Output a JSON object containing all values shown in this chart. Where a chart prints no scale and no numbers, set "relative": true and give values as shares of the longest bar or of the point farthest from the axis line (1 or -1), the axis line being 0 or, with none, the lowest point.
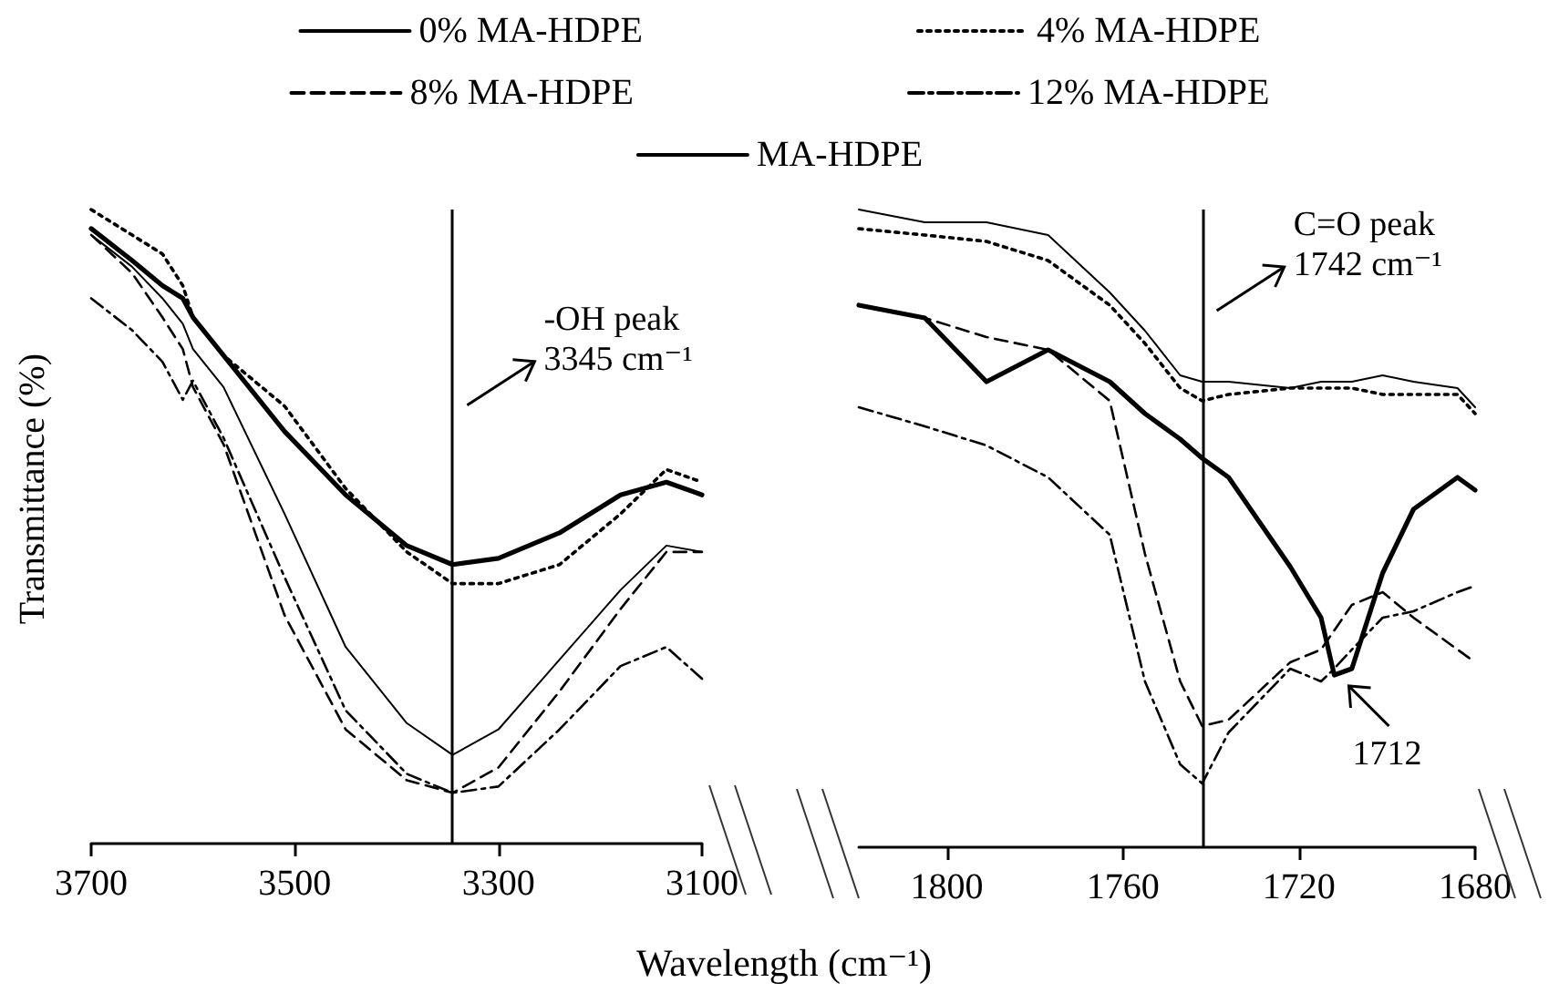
{
  "chart_data": [
    {
      "type": "line",
      "relative": true,
      "ylabel": "Transmittance (%)",
      "xlabel": "Wavelength (cm⁻¹)",
      "legend": "top",
      "marker": "none",
      "tick_labels": "x",
      "x": [
        3700,
        3660,
        3630,
        3610,
        3600,
        3570,
        3510,
        3450,
        3390,
        3345,
        3300,
        3240,
        3180,
        3135,
        3100
      ],
      "xlim": [
        3700,
        3100
      ],
      "xticks": [
        3700,
        3500,
        3300,
        3100
      ],
      "series": [
        {
          "name": "0% MA-HDPE",
          "color": "#000000",
          "line_style": "solid",
          "values": [
            0.96,
            0.91,
            0.86,
            0.82,
            0.78,
            0.72,
            0.52,
            0.31,
            0.19,
            0.14,
            0.18,
            0.29,
            0.4,
            0.47,
            0.46
          ]
        },
        {
          "name": "4% MA-HDPE",
          "color": "#000000",
          "line_style": "dotted",
          "values": [
            1.0,
            0.96,
            0.93,
            0.88,
            0.83,
            0.77,
            0.69,
            0.56,
            0.46,
            0.41,
            0.41,
            0.44,
            0.52,
            0.59,
            0.57
          ]
        },
        {
          "name": "8% MA-HDPE",
          "color": "#000000",
          "line_style": "dashed",
          "values": [
            0.96,
            0.9,
            0.83,
            0.78,
            0.72,
            0.63,
            0.36,
            0.18,
            0.1,
            0.08,
            0.12,
            0.24,
            0.37,
            0.46,
            0.46
          ]
        },
        {
          "name": "12% MA-HDPE",
          "color": "#000000",
          "line_style": "dashdot",
          "values": [
            0.86,
            0.81,
            0.76,
            0.7,
            0.73,
            0.64,
            0.42,
            0.21,
            0.11,
            0.08,
            0.09,
            0.18,
            0.28,
            0.31,
            0.26
          ]
        },
        {
          "name": "MA-HDPE",
          "color": "#000000",
          "line_style": "solid",
          "values": [
            0.97,
            0.92,
            0.88,
            0.86,
            0.83,
            0.77,
            0.65,
            0.55,
            0.47,
            0.44,
            0.45,
            0.49,
            0.55,
            0.57,
            0.55
          ]
        }
      ],
      "ref_lines": [
        {
          "axis": "x",
          "value": 3345
        }
      ],
      "annotations": [
        {
          "text": "-OH peak\n3345 cm⁻¹",
          "x": 3345,
          "y": 0.68
        }
      ]
    },
    {
      "type": "line",
      "relative": true,
      "legend": false,
      "marker": "none",
      "tick_labels": "x",
      "x": [
        1820,
        1805,
        1791,
        1777,
        1763,
        1755,
        1747,
        1742,
        1736,
        1722,
        1715,
        1712,
        1708,
        1701,
        1694,
        1684,
        1680
      ],
      "xlim": [
        1820,
        1680
      ],
      "xticks": [
        1800,
        1760,
        1720,
        1680
      ],
      "series": [
        {
          "color": "#000000",
          "line_style": "solid",
          "values": [
            1.0,
            0.98,
            0.98,
            0.96,
            0.87,
            0.81,
            0.74,
            0.73,
            0.73,
            0.72,
            0.73,
            0.73,
            0.73,
            0.74,
            0.73,
            0.72,
            0.69
          ]
        },
        {
          "color": "#000000",
          "line_style": "dotted",
          "values": [
            0.97,
            0.96,
            0.95,
            0.92,
            0.85,
            0.79,
            0.72,
            0.7,
            0.71,
            0.72,
            0.72,
            0.72,
            0.72,
            0.71,
            0.71,
            0.71,
            0.68
          ]
        },
        {
          "color": "#000000",
          "line_style": "dashed",
          "values": [
            0.85,
            0.83,
            0.8,
            0.78,
            0.7,
            0.46,
            0.26,
            0.19,
            0.2,
            0.29,
            0.31,
            0.34,
            0.38,
            0.4,
            0.36,
            0.31,
            0.29
          ]
        },
        {
          "color": "#000000",
          "line_style": "dashdot",
          "values": [
            0.69,
            0.66,
            0.63,
            0.58,
            0.49,
            0.26,
            0.13,
            0.1,
            0.18,
            0.28,
            0.26,
            0.28,
            0.31,
            0.36,
            0.37,
            0.4,
            0.41
          ]
        },
        {
          "color": "#000000",
          "line_style": "solid",
          "values": [
            0.85,
            0.83,
            0.73,
            0.78,
            0.73,
            0.68,
            0.64,
            0.61,
            0.58,
            0.44,
            0.36,
            0.27,
            0.28,
            0.43,
            0.53,
            0.58,
            0.56
          ]
        }
      ],
      "ref_lines": [
        {
          "axis": "x",
          "value": 1742
        }
      ],
      "annotations": [
        {
          "text": "C=O peak\n1742 cm⁻¹",
          "x": 1742,
          "y": 0.83
        },
        {
          "text": "1712",
          "x": 1712,
          "y": 0.27
        }
      ]
    }
  ]
}
